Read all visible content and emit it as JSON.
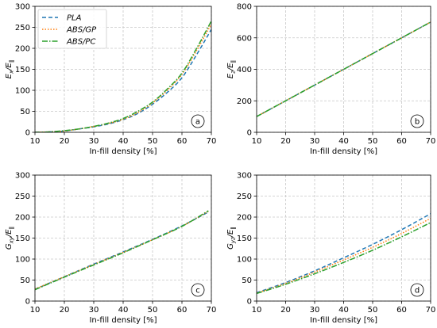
{
  "colors": {
    "PLA": "#1f77b4",
    "ABS/GP": "#ff7f0e",
    "ABS/PC": "#2ca02c"
  },
  "chart_data": [
    {
      "id": "a",
      "type": "line",
      "panel_label": "a",
      "xlabel": "In-fill density [%]",
      "ylabel_main": "E",
      "ylabel_sub": "x",
      "ylabel_tail": "/E",
      "ylabel_tail_sub": "∥",
      "xlim": [
        10,
        70
      ],
      "ylim": [
        0,
        300
      ],
      "xticks": [
        10,
        20,
        30,
        40,
        50,
        60,
        70
      ],
      "xtick_labels": [
        "10",
        "20",
        "30",
        "40",
        "50",
        "60",
        "70"
      ],
      "yticks": [
        0,
        50,
        100,
        150,
        200,
        250,
        300
      ],
      "ytick_labels": [
        "0",
        "50",
        "100",
        "150",
        "200",
        "250",
        "300"
      ],
      "grid": true,
      "legend": {
        "placement": "top-left",
        "entries": [
          "PLA",
          "ABS/GP",
          "ABS/PC"
        ]
      },
      "x": [
        10,
        15,
        20,
        25,
        30,
        35,
        40,
        45,
        50,
        55,
        60,
        65,
        70
      ],
      "series": [
        {
          "name": "PLA",
          "dash": "5,3",
          "values": [
            0,
            1,
            3,
            8,
            13,
            20,
            30,
            45,
            67,
            95,
            130,
            185,
            245
          ]
        },
        {
          "name": "ABS/GP",
          "dash": "1.5,2",
          "values": [
            0,
            1,
            3,
            8,
            14,
            21,
            31,
            47,
            70,
            100,
            138,
            195,
            258
          ]
        },
        {
          "name": "ABS/PC",
          "dash": "7,2,1.5,2",
          "values": [
            0,
            1,
            4,
            8,
            14,
            22,
            33,
            50,
            72,
            103,
            141,
            200,
            265
          ]
        }
      ]
    },
    {
      "id": "b",
      "type": "line",
      "panel_label": "b",
      "xlabel": "In-fill density [%]",
      "ylabel_main": "E",
      "ylabel_sub": "z",
      "ylabel_tail": "/E",
      "ylabel_tail_sub": "∥",
      "xlim": [
        10,
        70
      ],
      "ylim": [
        0,
        800
      ],
      "xticks": [
        10,
        20,
        30,
        40,
        50,
        60,
        70
      ],
      "xtick_labels": [
        "10",
        "20",
        "30",
        "40",
        "50",
        "60",
        "70"
      ],
      "yticks": [
        0,
        200,
        400,
        600,
        800
      ],
      "ytick_labels": [
        "0",
        "200",
        "400",
        "600",
        "800"
      ],
      "grid": true,
      "x": [
        10,
        70
      ],
      "series": [
        {
          "name": "PLA",
          "dash": "5,3",
          "values": [
            100,
            700
          ]
        },
        {
          "name": "ABS/GP",
          "dash": "1.5,2",
          "values": [
            100,
            700
          ]
        },
        {
          "name": "ABS/PC",
          "dash": "7,2,1.5,2",
          "values": [
            100,
            700
          ]
        }
      ]
    },
    {
      "id": "c",
      "type": "line",
      "panel_label": "c",
      "xlabel": "In-fill density [%]",
      "ylabel_main": "G",
      "ylabel_sub": "xy",
      "ylabel_tail": "/E",
      "ylabel_tail_sub": "∥",
      "xlim": [
        10,
        70
      ],
      "ylim": [
        0,
        300
      ],
      "xticks": [
        10,
        20,
        30,
        40,
        50,
        60,
        70
      ],
      "xtick_labels": [
        "10",
        "20",
        "30",
        "40",
        "50",
        "60",
        "70"
      ],
      "yticks": [
        0,
        50,
        100,
        150,
        200,
        250,
        300
      ],
      "ytick_labels": [
        "0",
        "50",
        "100",
        "150",
        "200",
        "250",
        "300"
      ],
      "grid": true,
      "x": [
        10,
        20,
        30,
        40,
        50,
        60,
        69
      ],
      "series": [
        {
          "name": "PLA",
          "dash": "5,3",
          "values": [
            28,
            58,
            88,
            117,
            147,
            179,
            212
          ]
        },
        {
          "name": "ABS/GP",
          "dash": "1.5,2",
          "values": [
            29,
            58,
            87,
            116,
            146,
            178,
            214
          ]
        },
        {
          "name": "ABS/PC",
          "dash": "7,2,1.5,2",
          "values": [
            27,
            57,
            86,
            115,
            146,
            178,
            215
          ]
        }
      ]
    },
    {
      "id": "d",
      "type": "line",
      "panel_label": "d",
      "xlabel": "In-fill density [%]",
      "ylabel_main": "G",
      "ylabel_sub": "yz",
      "ylabel_tail": "/E",
      "ylabel_tail_sub": "∥",
      "xlim": [
        10,
        70
      ],
      "ylim": [
        0,
        300
      ],
      "xticks": [
        10,
        20,
        30,
        40,
        50,
        60,
        70
      ],
      "xtick_labels": [
        "10",
        "20",
        "30",
        "40",
        "50",
        "60",
        "70"
      ],
      "yticks": [
        0,
        50,
        100,
        150,
        200,
        250,
        300
      ],
      "ytick_labels": [
        "0",
        "50",
        "100",
        "150",
        "200",
        "250",
        "300"
      ],
      "grid": true,
      "x": [
        10,
        20,
        30,
        40,
        50,
        60,
        70
      ],
      "series": [
        {
          "name": "PLA",
          "dash": "5,3",
          "values": [
            20,
            44,
            72,
            103,
            135,
            170,
            208
          ]
        },
        {
          "name": "ABS/GP",
          "dash": "1.5,2",
          "values": [
            19,
            42,
            69,
            98,
            128,
            161,
            197
          ]
        },
        {
          "name": "ABS/PC",
          "dash": "7,2,1.5,2",
          "values": [
            18,
            40,
            65,
            92,
            121,
            153,
            187
          ]
        }
      ]
    }
  ]
}
